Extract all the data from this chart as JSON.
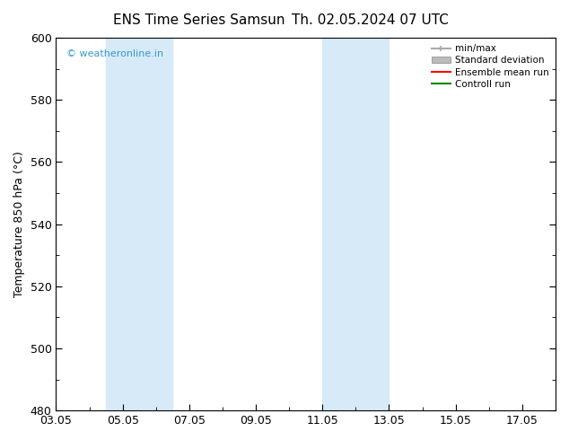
{
  "title_left": "ENS Time Series Samsun",
  "title_right": "Th. 02.05.2024 07 UTC",
  "ylabel": "Temperature 850 hPa (°C)",
  "ylim": [
    480,
    600
  ],
  "yticks": [
    480,
    500,
    520,
    540,
    560,
    580,
    600
  ],
  "xlim": [
    0,
    15
  ],
  "xtick_positions": [
    0,
    2,
    4,
    6,
    8,
    10,
    12,
    14
  ],
  "xtick_labels": [
    "03.05",
    "05.05",
    "07.05",
    "09.05",
    "11.05",
    "13.05",
    "15.05",
    "17.05"
  ],
  "shaded_bands": [
    {
      "xmin": 1.5,
      "xmax": 3.5,
      "color": "#d6eaf8"
    },
    {
      "xmin": 8.0,
      "xmax": 10.0,
      "color": "#d6eaf8"
    }
  ],
  "watermark": "© weatheronline.in",
  "watermark_color": "#3399cc",
  "background_color": "#ffffff",
  "axes_bg_color": "#ffffff",
  "legend_items": [
    {
      "label": "min/max",
      "color": "#aaaaaa",
      "lw": 1.5,
      "style": "minmax"
    },
    {
      "label": "Standard deviation",
      "color": "#bbbbbb",
      "lw": 6,
      "style": "box"
    },
    {
      "label": "Ensemble mean run",
      "color": "#ff0000",
      "lw": 1.5,
      "style": "line"
    },
    {
      "label": "Controll run",
      "color": "#008800",
      "lw": 1.5,
      "style": "line"
    }
  ],
  "tick_fontsize": 9,
  "ylabel_fontsize": 9,
  "title_fontsize": 11,
  "watermark_fontsize": 8
}
